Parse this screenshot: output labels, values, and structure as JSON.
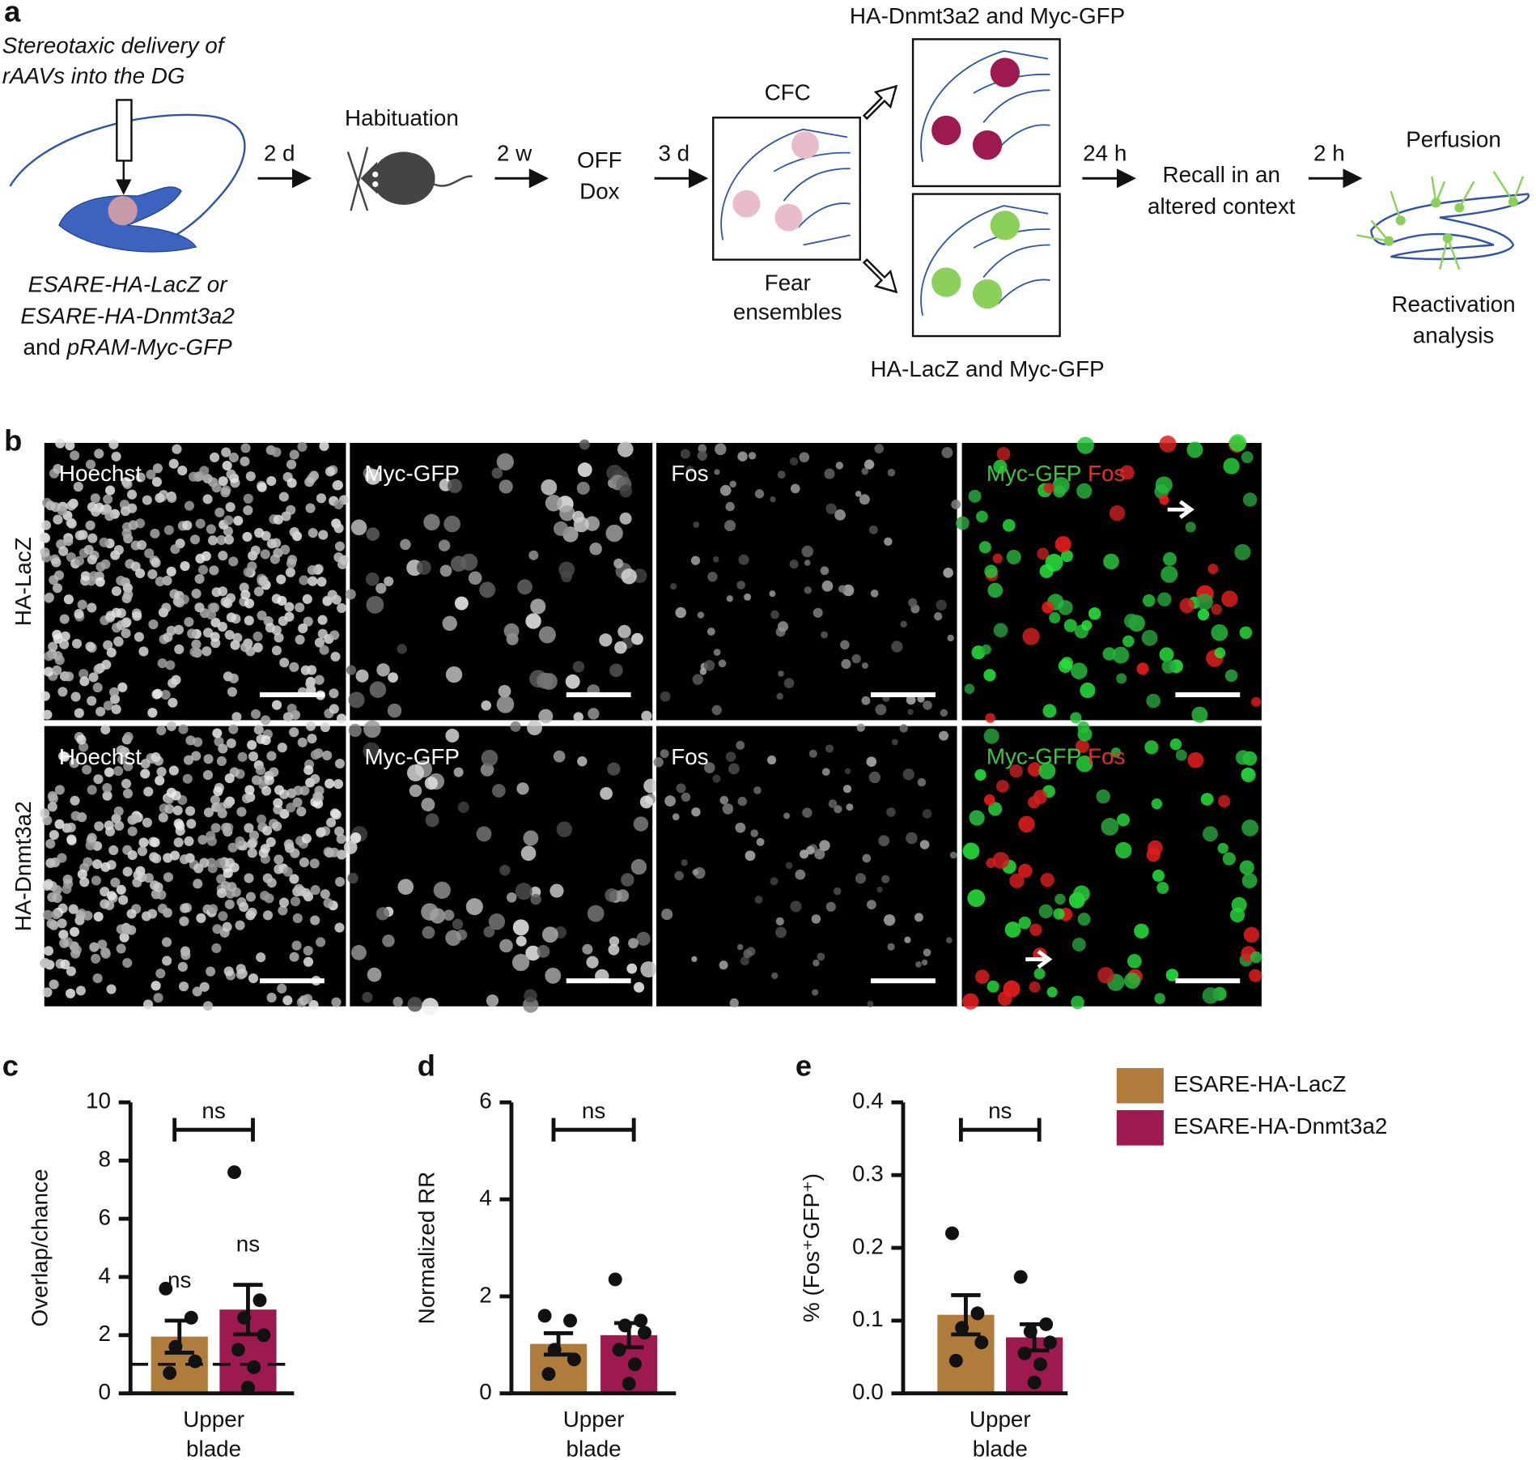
{
  "panel_a": {
    "letter": "a",
    "delivery": [
      "Stereotaxic delivery of",
      "rAAVs into the DG"
    ],
    "vectors": [
      "ESARE-HA-LacZ or",
      "ESARE-HA-Dnmt3a2",
      "and",
      "pRAM-Myc-GFP"
    ],
    "steps": [
      "2 d",
      "2 w",
      "3 d",
      "24 h",
      "2 h"
    ],
    "habituation": "Habituation",
    "off_dox": [
      "OFF",
      "Dox"
    ],
    "cfc": "CFC",
    "fear": [
      "Fear",
      "ensembles"
    ],
    "upper_group": "HA-Dnmt3a2 and Myc-GFP",
    "lower_group": "HA-LacZ and Myc-GFP",
    "recall": [
      "Recall in an",
      "altered context"
    ],
    "perfusion": "Perfusion",
    "reactivation": [
      "Reactivation",
      "analysis"
    ]
  },
  "panel_b": {
    "letter": "b",
    "rows": [
      "HA-LacZ",
      "HA-Dnmt3a2"
    ],
    "channels": [
      "Hoechst",
      "Myc-GFP",
      "Fos"
    ],
    "merge": [
      "Myc-GFP",
      "Fos"
    ]
  },
  "legend": {
    "entries": [
      {
        "name": "ESARE-HA-LacZ",
        "color": "#b07c3c"
      },
      {
        "name": "ESARE-HA-Dnmt3a2",
        "color": "#9c1a4f"
      }
    ]
  },
  "chart_data": [
    {
      "type": "bar",
      "panel_label": "c",
      "ylabel": "Overlap/chance",
      "xlabel": [
        "Upper",
        "blade"
      ],
      "ylim": [
        0,
        10
      ],
      "yticks": [
        0,
        2,
        4,
        6,
        8,
        10
      ],
      "reference_line": 1,
      "bracket_label": "ns",
      "bar_labels": [
        "ns",
        "ns"
      ],
      "series": [
        {
          "color": "#b07c3c",
          "values": [
            1.95
          ],
          "errors": [
            0.55
          ],
          "points": [
            3.6,
            2.6,
            1.6,
            1.1,
            0.7
          ]
        },
        {
          "color": "#9c1a4f",
          "values": [
            2.88
          ],
          "errors": [
            0.85
          ],
          "points": [
            7.6,
            3.2,
            2.6,
            2.0,
            1.5,
            0.9,
            0.2
          ]
        }
      ]
    },
    {
      "type": "bar",
      "panel_label": "d",
      "ylabel": "Normalized RR",
      "xlabel": [
        "Upper",
        "blade"
      ],
      "ylim": [
        0,
        6
      ],
      "yticks": [
        0,
        2,
        4,
        6
      ],
      "bracket_label": "ns",
      "series": [
        {
          "color": "#b07c3c",
          "values": [
            1.02
          ],
          "errors": [
            0.22
          ],
          "points": [
            1.6,
            1.5,
            0.9,
            0.7,
            0.4
          ]
        },
        {
          "color": "#9c1a4f",
          "values": [
            1.2
          ],
          "errors": [
            0.25
          ],
          "points": [
            2.35,
            1.5,
            1.4,
            1.25,
            0.9,
            0.6,
            0.2
          ]
        }
      ]
    },
    {
      "type": "bar",
      "panel_label": "e",
      "ylabel": "% (Fos⁺GFP⁺)",
      "xlabel": [
        "Upper",
        "blade"
      ],
      "ylim": [
        0,
        0.4
      ],
      "yticks": [
        {
          "value": 0,
          "label": "0.0"
        },
        0.1,
        0.2,
        0.3,
        0.4
      ],
      "bracket_label": "ns",
      "series": [
        {
          "color": "#b07c3c",
          "values": [
            0.108
          ],
          "errors": [
            0.027
          ],
          "points": [
            0.22,
            0.11,
            0.09,
            0.07,
            0.045
          ]
        },
        {
          "color": "#9c1a4f",
          "values": [
            0.077
          ],
          "errors": [
            0.018
          ],
          "points": [
            0.16,
            0.095,
            0.085,
            0.07,
            0.055,
            0.04,
            0.015
          ]
        }
      ]
    }
  ]
}
